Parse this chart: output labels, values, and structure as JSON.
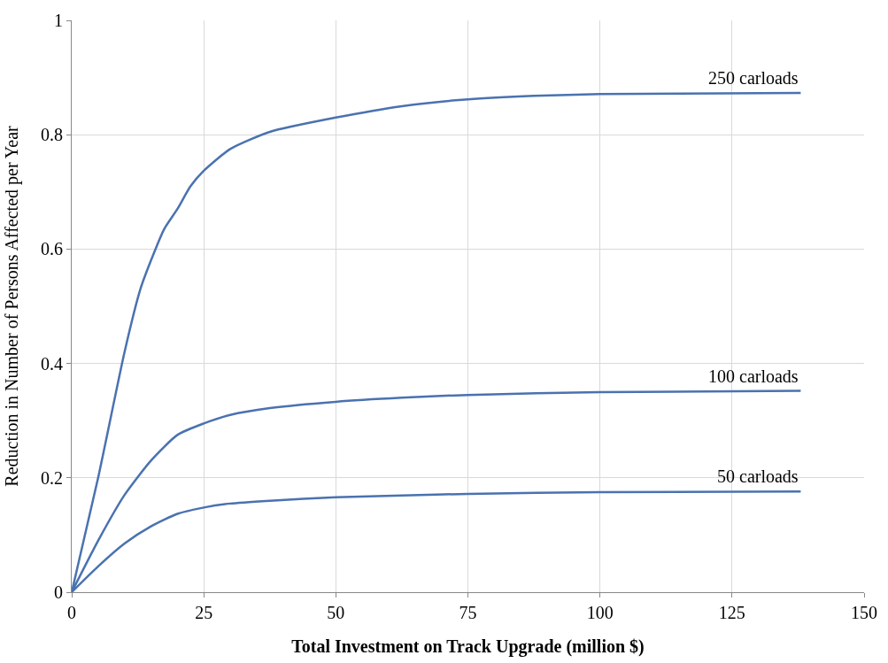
{
  "chart_data": {
    "type": "line",
    "xlabel": "Total Investment on Track Upgrade (million $)",
    "ylabel": "Reduction in Number of Persons Affected per Year",
    "series": [
      {
        "name": "250 carloads",
        "color": "#4a72b0",
        "x": [
          0,
          5,
          10,
          13,
          15,
          17.5,
          20,
          22.5,
          25,
          30,
          37.5,
          50,
          62.5,
          75,
          87.5,
          100,
          115,
          138
        ],
        "values": [
          0,
          0.2,
          0.42,
          0.53,
          0.58,
          0.635,
          0.67,
          0.71,
          0.737,
          0.775,
          0.805,
          0.83,
          0.85,
          0.862,
          0.868,
          0.871,
          0.872,
          0.873
        ]
      },
      {
        "name": "100 carloads",
        "color": "#4a72b0",
        "x": [
          0,
          5,
          10,
          15,
          20,
          25,
          30,
          37.5,
          50,
          62.5,
          75,
          100,
          138
        ],
        "values": [
          0,
          0.09,
          0.17,
          0.23,
          0.275,
          0.295,
          0.31,
          0.322,
          0.333,
          0.34,
          0.345,
          0.35,
          0.352
        ]
      },
      {
        "name": "50 carloads",
        "color": "#4a72b0",
        "x": [
          0,
          5,
          10,
          15,
          20,
          25,
          30,
          37.5,
          50,
          62.5,
          75,
          100,
          138
        ],
        "values": [
          0,
          0.045,
          0.085,
          0.115,
          0.137,
          0.148,
          0.155,
          0.16,
          0.166,
          0.169,
          0.172,
          0.175,
          0.176
        ]
      }
    ],
    "xlim": [
      0,
      150
    ],
    "xticks": [
      0,
      25,
      50,
      75,
      100,
      125,
      150
    ],
    "ylim": [
      0,
      1
    ],
    "yticks": [
      0,
      0.2,
      0.4,
      0.6,
      0.8,
      1
    ],
    "grid": true,
    "legend": false,
    "marker": "none",
    "line_style": "solid"
  }
}
